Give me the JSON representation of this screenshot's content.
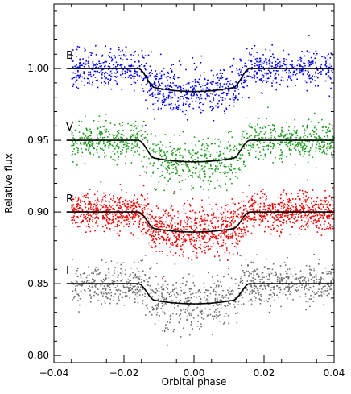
{
  "chart_data": {
    "type": "scatter",
    "title": "",
    "xlabel": "Orbital phase",
    "ylabel": "Relative flux",
    "xlim": [
      -0.04,
      0.04
    ],
    "ylim": [
      0.795,
      1.045
    ],
    "xticks": [
      -0.04,
      -0.02,
      0.0,
      0.02,
      0.04
    ],
    "xtick_labels": [
      "−0.04",
      "−0.02",
      "0.00",
      "0.02",
      "0.04"
    ],
    "yticks": [
      0.8,
      0.85,
      0.9,
      0.95,
      1.0
    ],
    "ytick_labels": [
      "0.80",
      "0.85",
      "0.90",
      "0.95",
      "1.00"
    ],
    "grid": false,
    "legend": "none",
    "transit_model": {
      "ingress_start": -0.016,
      "full_start": -0.011,
      "full_end": 0.011,
      "egress_end": 0.016
    },
    "series": [
      {
        "name": "B",
        "baseline": 1.0,
        "depth": 0.016,
        "scatter": 0.0065,
        "color": "#0000ee",
        "x_start": -0.035,
        "x_end": 0.04
      },
      {
        "name": "V",
        "baseline": 0.95,
        "depth": 0.015,
        "scatter": 0.0065,
        "color": "#1a9a1a",
        "x_start": -0.035,
        "x_end": 0.04
      },
      {
        "name": "R",
        "baseline": 0.9,
        "depth": 0.014,
        "scatter": 0.0065,
        "color": "#ee0000",
        "x_start": -0.035,
        "x_end": 0.04
      },
      {
        "name": "I",
        "baseline": 0.85,
        "depth": 0.014,
        "scatter": 0.007,
        "color": "#6e6e6e",
        "x_start": -0.035,
        "x_end": 0.04
      }
    ]
  }
}
